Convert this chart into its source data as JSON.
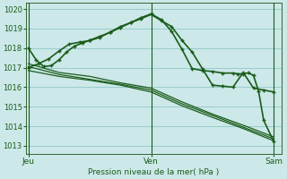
{
  "xlabel": "Pression niveau de la mer( hPa )",
  "bg_color": "#cce8e8",
  "grid_color": "#99cccc",
  "line_color": "#1a5c1a",
  "ylim": [
    1012.6,
    1020.3
  ],
  "yticks": [
    1013,
    1014,
    1015,
    1016,
    1017,
    1018,
    1019,
    1020
  ],
  "day_labels": [
    "Jeu",
    "Ven",
    "Sam"
  ],
  "day_positions": [
    0,
    48,
    96
  ],
  "xlim": [
    -1,
    99
  ],
  "line_with_markers_1": {
    "x": [
      0,
      3,
      6,
      9,
      12,
      15,
      18,
      21,
      24,
      28,
      32,
      36,
      40,
      44,
      48,
      52,
      56,
      60,
      64,
      68,
      72,
      76,
      80,
      84,
      88,
      92,
      96
    ],
    "y": [
      1018.0,
      1017.4,
      1017.05,
      1017.1,
      1017.4,
      1017.8,
      1018.1,
      1018.25,
      1018.4,
      1018.6,
      1018.8,
      1019.05,
      1019.3,
      1019.5,
      1019.72,
      1019.4,
      1019.1,
      1018.4,
      1017.8,
      1016.95,
      1016.1,
      1016.05,
      1016.0,
      1016.75,
      1015.95,
      1015.85,
      1015.75
    ]
  },
  "line_no_markers_1": {
    "x": [
      0,
      12,
      24,
      36,
      48,
      60,
      72,
      84,
      96
    ],
    "y": [
      1017.05,
      1016.65,
      1016.4,
      1016.15,
      1015.85,
      1015.15,
      1014.55,
      1013.95,
      1013.35
    ]
  },
  "line_no_markers_2": {
    "x": [
      0,
      12,
      24,
      36,
      48,
      60,
      72,
      84,
      96
    ],
    "y": [
      1016.85,
      1016.55,
      1016.35,
      1016.1,
      1015.75,
      1015.05,
      1014.45,
      1013.88,
      1013.25
    ]
  },
  "line_no_markers_3": {
    "x": [
      0,
      12,
      24,
      36,
      48,
      60,
      72,
      84,
      96
    ],
    "y": [
      1017.2,
      1016.75,
      1016.55,
      1016.22,
      1015.95,
      1015.25,
      1014.62,
      1014.05,
      1013.45
    ]
  },
  "line_with_markers_2": {
    "x": [
      0,
      4,
      8,
      12,
      16,
      20,
      24,
      28,
      32,
      36,
      40,
      44,
      48,
      52,
      56,
      60,
      64,
      68,
      72,
      76,
      80,
      82,
      84,
      86,
      88,
      90,
      92,
      96
    ],
    "y": [
      1017.0,
      1017.2,
      1017.45,
      1017.85,
      1018.2,
      1018.3,
      1018.38,
      1018.55,
      1018.82,
      1019.1,
      1019.3,
      1019.55,
      1019.75,
      1019.45,
      1018.85,
      1017.95,
      1016.95,
      1016.85,
      1016.8,
      1016.72,
      1016.72,
      1016.68,
      1016.68,
      1016.73,
      1016.6,
      1015.8,
      1014.3,
      1013.2
    ]
  }
}
